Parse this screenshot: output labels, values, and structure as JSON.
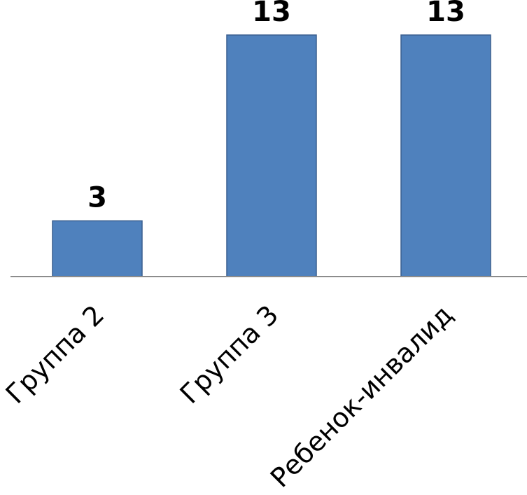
{
  "chart_data": {
    "type": "bar",
    "categories": [
      "Группа 2",
      "Группа 3",
      "Ребенок-инвалид"
    ],
    "values": [
      3,
      13,
      13
    ],
    "data_labels": [
      "3",
      "13",
      "13"
    ],
    "title": "",
    "xlabel": "",
    "ylabel": "",
    "ylim": [
      0,
      13
    ],
    "grid": false,
    "legend": "none",
    "colors": {
      "bar_fill": "#4f81bd",
      "bar_stroke": "#3a5f8f",
      "axis": "#8c8c8c"
    }
  }
}
